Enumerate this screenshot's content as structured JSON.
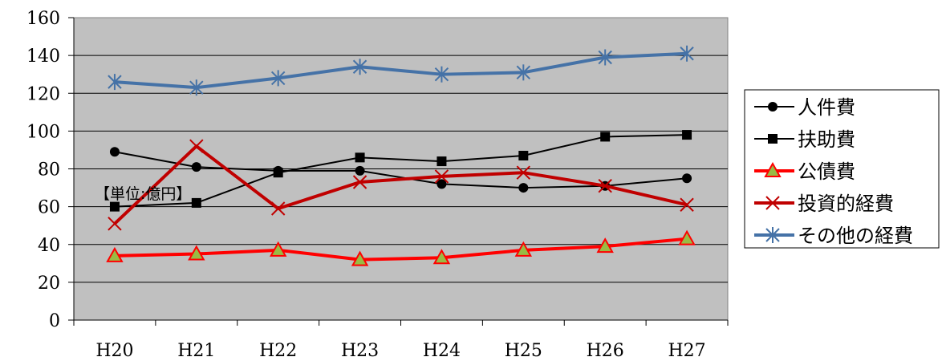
{
  "chart_data": {
    "type": "line",
    "title": "",
    "xlabel": "",
    "ylabel": "",
    "annotation": "【単位:億円】",
    "categories": [
      "H20",
      "H21",
      "H22",
      "H23",
      "H24",
      "H25",
      "H26",
      "H27"
    ],
    "ylim": [
      0,
      160
    ],
    "yticks": [
      0,
      20,
      40,
      60,
      80,
      100,
      120,
      140,
      160
    ],
    "grid": true,
    "legend_position": "right",
    "plot_background": "#c0c0c0",
    "series": [
      {
        "name": "人件費",
        "color": "#000000",
        "marker": "circle",
        "values": [
          89,
          81,
          79,
          79,
          72,
          70,
          71,
          75
        ]
      },
      {
        "name": "扶助費",
        "color": "#000000",
        "marker": "square",
        "values": [
          60,
          62,
          78,
          86,
          84,
          87,
          97,
          98
        ]
      },
      {
        "name": "公債費",
        "color": "#ff0000",
        "marker": "triangle",
        "marker_fill": "#99bb44",
        "values": [
          34,
          35,
          37,
          32,
          33,
          37,
          39,
          43
        ]
      },
      {
        "name": "投資的経費",
        "color": "#c00000",
        "marker": "x",
        "values": [
          51,
          92,
          59,
          73,
          76,
          78,
          71,
          61
        ]
      },
      {
        "name": "その他の経費",
        "color": "#4572a7",
        "marker": "asterisk",
        "values": [
          126,
          123,
          128,
          134,
          130,
          131,
          139,
          141
        ]
      }
    ]
  }
}
